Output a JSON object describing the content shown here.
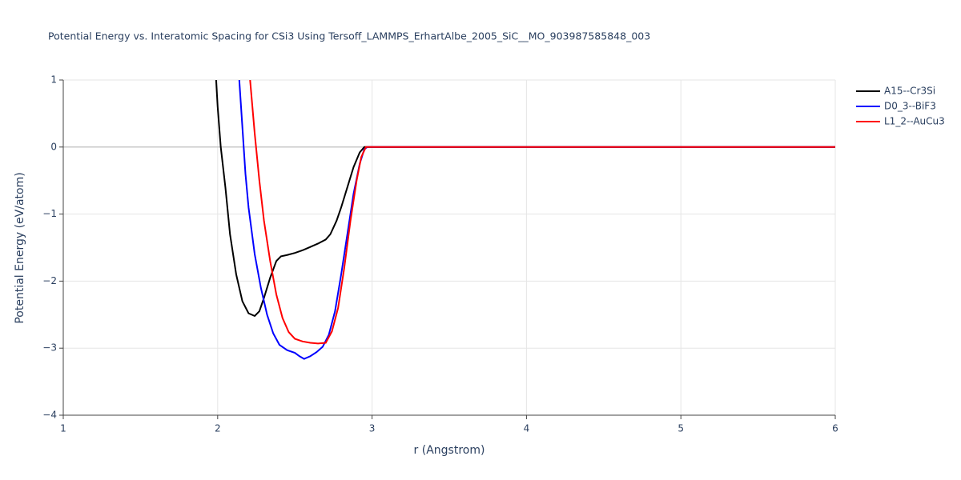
{
  "chart_data": {
    "type": "line",
    "title": "Potential Energy vs. Interatomic Spacing for CSi3 Using Tersoff_LAMMPS_ErhartAlbe_2005_SiC__MO_903987585848_003",
    "xlabel": "r (Angstrom)",
    "ylabel": "Potential Energy (eV/atom)",
    "xlim": [
      1,
      6
    ],
    "ylim": [
      -4,
      1
    ],
    "xticks": [
      1,
      2,
      3,
      4,
      5,
      6
    ],
    "yticks": [
      1,
      0,
      {
        "value": -1,
        "label": "−1"
      },
      {
        "value": -2,
        "label": "−2"
      },
      {
        "value": -3,
        "label": "−3"
      },
      {
        "value": -4,
        "label": "−4"
      }
    ],
    "grid": true,
    "legend": "right",
    "series": [
      {
        "name": "A15--Cr3Si",
        "color": "#000000",
        "x": [
          1.99,
          2.0,
          2.02,
          2.05,
          2.08,
          2.12,
          2.16,
          2.2,
          2.24,
          2.27,
          2.3,
          2.34,
          2.38,
          2.41,
          2.45,
          2.5,
          2.55,
          2.6,
          2.65,
          2.7,
          2.73,
          2.77,
          2.8,
          2.84,
          2.88,
          2.92,
          2.95,
          3.0,
          6
        ],
        "values": [
          1.0,
          0.6,
          0,
          -0.6,
          -1.3,
          -1.9,
          -2.3,
          -2.48,
          -2.52,
          -2.45,
          -2.25,
          -1.95,
          -1.7,
          -1.63,
          -1.61,
          -1.58,
          -1.54,
          -1.49,
          -1.44,
          -1.38,
          -1.3,
          -1.1,
          -0.9,
          -0.6,
          -0.3,
          -0.08,
          0,
          0,
          0
        ]
      },
      {
        "name": "D0_3--BiF3",
        "color": "#0000ff",
        "x": [
          2.14,
          2.16,
          2.18,
          2.2,
          2.24,
          2.28,
          2.32,
          2.36,
          2.4,
          2.45,
          2.5,
          2.53,
          2.56,
          2.6,
          2.64,
          2.68,
          2.72,
          2.76,
          2.8,
          2.84,
          2.88,
          2.92,
          2.95,
          2.97,
          6
        ],
        "values": [
          1.0,
          0.3,
          -0.4,
          -0.9,
          -1.6,
          -2.1,
          -2.5,
          -2.78,
          -2.95,
          -3.03,
          -3.07,
          -3.12,
          -3.16,
          -3.12,
          -3.06,
          -2.98,
          -2.8,
          -2.45,
          -1.9,
          -1.3,
          -0.7,
          -0.25,
          -0.03,
          0,
          0
        ]
      },
      {
        "name": "L1_2--AuCu3",
        "color": "#ff0000",
        "x": [
          2.21,
          2.24,
          2.27,
          2.3,
          2.34,
          2.38,
          2.42,
          2.46,
          2.5,
          2.55,
          2.6,
          2.65,
          2.7,
          2.74,
          2.78,
          2.82,
          2.86,
          2.9,
          2.93,
          2.96,
          6
        ],
        "values": [
          1.0,
          0.2,
          -0.5,
          -1.1,
          -1.7,
          -2.2,
          -2.55,
          -2.76,
          -2.86,
          -2.9,
          -2.92,
          -2.93,
          -2.92,
          -2.75,
          -2.4,
          -1.8,
          -1.1,
          -0.5,
          -0.15,
          0,
          0
        ]
      }
    ]
  }
}
